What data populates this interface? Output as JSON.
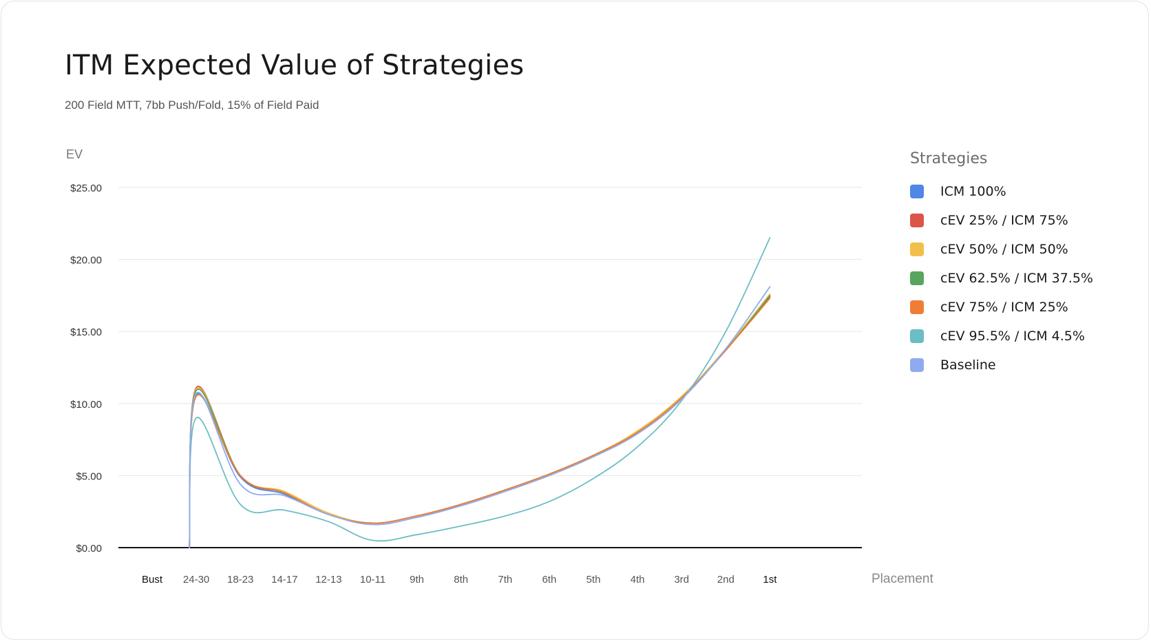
{
  "title": "ITM Expected Value of Strategies",
  "subtitle": "200 Field MTT, 7bb Push/Fold, 15% of Field Paid",
  "legend_title": "Strategies",
  "chart_data": {
    "type": "line",
    "ylabel": "EV",
    "xlabel": "Placement",
    "ylim": [
      0,
      25
    ],
    "y_ticks": [
      "$0.00",
      "$5.00",
      "$10.00",
      "$15.00",
      "$20.00",
      "$25.00"
    ],
    "y_tick_values": [
      0,
      5,
      10,
      15,
      20,
      25
    ],
    "categories": [
      "Bust",
      "24-30",
      "18-23",
      "14-17",
      "12-13",
      "10-11",
      "9th",
      "8th",
      "7th",
      "6th",
      "5th",
      "4th",
      "3rd",
      "2nd",
      "1st"
    ],
    "grid": true,
    "legend_position": "right",
    "series": [
      {
        "name": "ICM 100%",
        "color": "#4f86e8",
        "values": [
          null,
          10.6,
          4.9,
          3.7,
          2.3,
          1.7,
          2.2,
          3.0,
          4.0,
          5.1,
          6.4,
          8.0,
          10.4,
          13.7,
          17.5
        ]
      },
      {
        "name": "cEV 25% / ICM 75%",
        "color": "#dc5548",
        "values": [
          null,
          11.1,
          5.0,
          3.8,
          2.3,
          1.7,
          2.2,
          3.0,
          4.0,
          5.1,
          6.4,
          8.0,
          10.4,
          13.7,
          17.4
        ]
      },
      {
        "name": "cEV 50% / ICM 50%",
        "color": "#f2c04a",
        "values": [
          null,
          11.0,
          5.0,
          3.9,
          2.4,
          1.7,
          2.2,
          3.0,
          4.0,
          5.1,
          6.4,
          8.1,
          10.5,
          13.8,
          17.6
        ]
      },
      {
        "name": "cEV 62.5% / ICM 37.5%",
        "color": "#57a55e",
        "values": [
          null,
          10.9,
          5.0,
          3.8,
          2.3,
          1.7,
          2.2,
          3.0,
          4.0,
          5.1,
          6.4,
          8.0,
          10.4,
          13.7,
          17.5
        ]
      },
      {
        "name": "cEV 75% / ICM 25%",
        "color": "#ef7d35",
        "values": [
          null,
          10.5,
          5.0,
          3.8,
          2.3,
          1.7,
          2.2,
          3.0,
          4.0,
          5.1,
          6.4,
          8.0,
          10.4,
          13.7,
          17.3
        ]
      },
      {
        "name": "cEV 95.5% / ICM 4.5%",
        "color": "#6bbdc6",
        "values": [
          null,
          9.0,
          3.0,
          2.6,
          1.8,
          0.5,
          0.9,
          1.5,
          2.2,
          3.2,
          4.8,
          7.0,
          10.2,
          15.0,
          21.5
        ]
      },
      {
        "name": "Baseline",
        "color": "#8faaf0",
        "values": [
          null,
          10.7,
          4.4,
          3.6,
          2.3,
          1.6,
          2.1,
          2.9,
          3.9,
          5.0,
          6.3,
          7.9,
          10.3,
          13.8,
          18.1
        ]
      }
    ]
  }
}
